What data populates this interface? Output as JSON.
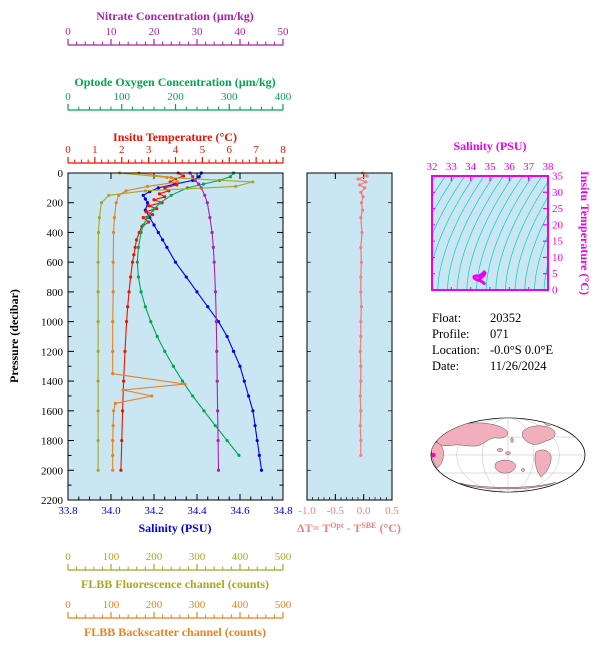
{
  "colors": {
    "nitrate": "#AA22AA",
    "oxygen": "#00A651",
    "temperature": "#EE1100",
    "salinity": "#0000EE",
    "fluorescence": "#A8A820",
    "backscatter": "#E8821E",
    "delta": "#F08080",
    "ts_frame": "#EE00EE",
    "contours": "#00CCCC",
    "plot_bg": "#CBE6F3",
    "map_land": "#F2AEBB",
    "axis_black": "#000000"
  },
  "axes": {
    "pressure": {
      "label": "Pressure (decibar)",
      "min": 0,
      "max": 2200,
      "tick_values": [
        0,
        200,
        400,
        600,
        800,
        1000,
        1200,
        1400,
        1600,
        1800,
        2000,
        2200
      ],
      "tick_labels": [
        "0",
        "200",
        "400",
        "600",
        "800",
        "1000",
        "1200",
        "1400",
        "1600",
        "1800",
        "2000",
        "2200"
      ]
    },
    "nitrate": {
      "title": "Nitrate Concentration (µm/kg)",
      "min": 0,
      "max": 50,
      "tick_values": [
        0,
        10,
        20,
        30,
        40,
        50
      ],
      "tick_labels": [
        "0",
        "10",
        "20",
        "30",
        "40",
        "50"
      ]
    },
    "oxygen": {
      "title": "Optode Oxygen Concentration (µm/kg)",
      "min": 0,
      "max": 400,
      "tick_values": [
        0,
        100,
        200,
        300,
        400
      ],
      "tick_labels": [
        "0",
        "100",
        "200",
        "300",
        "400"
      ]
    },
    "temperature": {
      "title": "Insitu Temperature (°C)",
      "min": 0,
      "max": 8,
      "tick_values": [
        0,
        1,
        2,
        3,
        4,
        5,
        6,
        7,
        8
      ],
      "tick_labels": [
        "0",
        "1",
        "2",
        "3",
        "4",
        "5",
        "6",
        "7",
        "8"
      ]
    },
    "salinity": {
      "title": "Salinity (PSU)",
      "min": 33.8,
      "max": 34.8,
      "tick_values": [
        33.8,
        34.0,
        34.2,
        34.4,
        34.6,
        34.8
      ],
      "tick_labels": [
        "33.8",
        "34.0",
        "34.2",
        "34.4",
        "34.6",
        "34.8"
      ]
    },
    "fluorescence": {
      "title": "FLBB Fluorescence channel (counts)",
      "min": 0,
      "max": 500,
      "tick_values": [
        0,
        100,
        200,
        300,
        400,
        500
      ],
      "tick_labels": [
        "0",
        "100",
        "200",
        "300",
        "400",
        "500"
      ]
    },
    "backscatter": {
      "title": "FLBB Backscatter channel (counts)",
      "min": 0,
      "max": 500,
      "tick_values": [
        0,
        100,
        200,
        300,
        400,
        500
      ],
      "tick_labels": [
        "0",
        "100",
        "200",
        "300",
        "400",
        "500"
      ]
    }
  },
  "delta_label": {
    "prefix": "ΔT= T",
    "sup1": "Opt",
    "mid": " - T",
    "sup2": "SBE",
    "suffix": " (°C)"
  },
  "info": {
    "rows": [
      {
        "label": "Float:",
        "value": "20352"
      },
      {
        "label": "Profile:",
        "value": "071"
      },
      {
        "label": "Location:",
        "value": "-0.0°S  0.0°E"
      },
      {
        "label": "Date:",
        "value": "11/26/2024"
      }
    ]
  },
  "chart_data": [
    {
      "id": "profiles",
      "type": "line",
      "ylabel": "Pressure (decibar)",
      "ylim": [
        0,
        2200
      ],
      "y_inverted": true,
      "series": [
        {
          "name": "Salinity (PSU)",
          "axis": "salinity",
          "xlim": [
            33.8,
            34.8
          ],
          "pressure": [
            0,
            25,
            50,
            75,
            100,
            125,
            150,
            175,
            200,
            250,
            300,
            350,
            400,
            450,
            500,
            600,
            700,
            800,
            900,
            1000,
            1100,
            1200,
            1300,
            1400,
            1500,
            1600,
            1700,
            1800,
            1900,
            2000
          ],
          "values": [
            34.42,
            34.41,
            34.38,
            34.3,
            34.22,
            34.18,
            34.15,
            34.16,
            34.17,
            34.16,
            34.18,
            34.2,
            34.22,
            34.24,
            34.26,
            34.3,
            34.35,
            34.4,
            34.45,
            34.5,
            34.54,
            34.57,
            34.6,
            34.62,
            34.64,
            34.66,
            34.67,
            34.68,
            34.69,
            34.7
          ]
        },
        {
          "name": "Insitu Temperature (°C)",
          "axis": "temperature",
          "xlim": [
            0,
            8
          ],
          "pressure": [
            0,
            20,
            40,
            60,
            80,
            100,
            120,
            140,
            160,
            180,
            200,
            220,
            240,
            260,
            280,
            300,
            330,
            360,
            400,
            450,
            500,
            550,
            600,
            700,
            800,
            900,
            1000,
            1200,
            1400,
            1600,
            1800,
            2000
          ],
          "values": [
            4.1,
            4.3,
            4.0,
            3.8,
            4.05,
            3.6,
            3.75,
            3.4,
            3.6,
            3.2,
            3.5,
            3.0,
            3.3,
            2.9,
            3.15,
            2.8,
            3.0,
            2.75,
            2.65,
            2.55,
            2.5,
            2.45,
            2.4,
            2.33,
            2.27,
            2.22,
            2.18,
            2.12,
            2.07,
            2.03,
            2.0,
            1.97
          ]
        },
        {
          "name": "Optode Oxygen Concentration (µm/kg)",
          "axis": "oxygen",
          "xlim": [
            0,
            400
          ],
          "pressure": [
            0,
            25,
            50,
            75,
            100,
            150,
            200,
            250,
            300,
            350,
            400,
            500,
            600,
            700,
            800,
            900,
            1000,
            1100,
            1200,
            1300,
            1400,
            1500,
            1600,
            1700,
            1800,
            1900
          ],
          "values": [
            308,
            302,
            282,
            252,
            222,
            192,
            172,
            158,
            148,
            140,
            136,
            131,
            129,
            131,
            136,
            144,
            154,
            166,
            180,
            196,
            213,
            232,
            253,
            274,
            296,
            318
          ]
        },
        {
          "name": "Nitrate Concentration (µm/kg)",
          "axis": "nitrate",
          "xlim": [
            0,
            50
          ],
          "pressure": [
            0,
            25,
            50,
            75,
            100,
            150,
            200,
            300,
            400,
            500,
            600,
            800,
            1000,
            1200,
            1400,
            1600,
            1800,
            2000
          ],
          "values": [
            28.4,
            29.0,
            29.6,
            30.4,
            31.0,
            31.8,
            32.4,
            33.0,
            33.5,
            33.8,
            34.0,
            34.3,
            34.5,
            34.6,
            34.7,
            34.8,
            34.9,
            35.0
          ]
        },
        {
          "name": "FLBB Fluorescence channel (counts)",
          "axis": "fluorescence",
          "xlim": [
            0,
            500
          ],
          "pressure": [
            0,
            30,
            60,
            90,
            120,
            150,
            200,
            300,
            400,
            600,
            800,
            1000,
            1200,
            1400,
            1600,
            1800,
            2000
          ],
          "values": [
            120,
            230,
            430,
            390,
            180,
            95,
            78,
            73,
            71,
            70,
            70,
            70,
            70,
            70,
            70,
            70,
            70
          ]
        },
        {
          "name": "FLBB Backscatter channel (counts)",
          "axis": "backscatter",
          "xlim": [
            0,
            500
          ],
          "pressure": [
            0,
            30,
            60,
            90,
            120,
            150,
            200,
            300,
            400,
            600,
            800,
            1000,
            1200,
            1350,
            1420,
            1460,
            1500,
            1550,
            1600,
            1700,
            1800,
            1900,
            2000
          ],
          "values": [
            165,
            240,
            255,
            185,
            135,
            118,
            112,
            108,
            106,
            105,
            105,
            104,
            104,
            104,
            272,
            128,
            195,
            110,
            106,
            105,
            104,
            104,
            104
          ]
        }
      ]
    },
    {
      "id": "delta_t",
      "type": "line",
      "xlabel": "ΔT = T^Opt - T^SBE (°C)",
      "xlim": [
        -1.0,
        0.5
      ],
      "tick_values": [
        -1.0,
        -0.5,
        0.0,
        0.5
      ],
      "tick_labels": [
        "-1.0",
        "-0.5",
        "0.0",
        "0.5"
      ],
      "ylim": [
        0,
        2200
      ],
      "pressure": [
        0,
        20,
        40,
        60,
        80,
        100,
        130,
        160,
        200,
        250,
        300,
        400,
        500,
        600,
        700,
        800,
        900,
        1000,
        1100,
        1200,
        1300,
        1400,
        1500,
        1600,
        1700,
        1800,
        1900
      ],
      "values": [
        -0.02,
        0.06,
        -0.1,
        0.04,
        -0.07,
        0.02,
        -0.05,
        -0.01,
        -0.04,
        -0.02,
        -0.05,
        -0.03,
        -0.05,
        -0.04,
        -0.05,
        -0.05,
        -0.04,
        -0.05,
        -0.05,
        -0.06,
        -0.05,
        -0.05,
        -0.06,
        -0.05,
        -0.06,
        -0.05,
        -0.05
      ]
    },
    {
      "id": "ts_diagram",
      "type": "scatter",
      "xlabel": "Salinity (PSU)",
      "ylabel": "Insitu Temperature (°C)",
      "xlim": [
        32,
        38
      ],
      "ylim": [
        0,
        35
      ],
      "x_ticks": [
        32,
        33,
        34,
        35,
        36,
        37,
        38
      ],
      "y_ticks": [
        0,
        5,
        10,
        15,
        20,
        25,
        30,
        35
      ],
      "contour_bases": [
        29.8,
        30.3,
        30.8,
        31.3,
        31.8,
        32.3,
        32.8,
        33.3,
        33.8,
        34.3,
        34.8,
        35.3,
        35.8,
        36.3,
        36.8,
        37.3,
        37.8
      ],
      "contour_spread": 2.4,
      "points": [
        [
          34.7,
          1.95
        ],
        [
          34.69,
          2.0
        ],
        [
          34.68,
          2.1
        ],
        [
          34.66,
          2.2
        ],
        [
          34.64,
          2.3
        ],
        [
          34.62,
          2.4
        ],
        [
          34.6,
          2.5
        ],
        [
          34.57,
          2.6
        ],
        [
          34.54,
          2.7
        ],
        [
          34.5,
          2.8
        ],
        [
          34.45,
          2.9
        ],
        [
          34.4,
          3.0
        ],
        [
          34.35,
          3.1
        ],
        [
          34.3,
          3.2
        ],
        [
          34.26,
          3.3
        ],
        [
          34.22,
          3.5
        ],
        [
          34.18,
          3.7
        ],
        [
          34.16,
          3.9
        ],
        [
          34.17,
          4.1
        ],
        [
          34.2,
          4.3
        ],
        [
          34.25,
          4.2
        ],
        [
          34.3,
          4.4
        ],
        [
          34.38,
          4.3
        ],
        [
          34.42,
          4.1
        ],
        [
          34.45,
          4.4
        ],
        [
          34.5,
          4.6
        ],
        [
          34.55,
          4.8
        ],
        [
          34.6,
          5.0
        ],
        [
          34.65,
          5.3
        ],
        [
          34.7,
          5.6
        ],
        [
          34.75,
          5.2
        ],
        [
          34.72,
          4.8
        ],
        [
          34.68,
          4.5
        ],
        [
          34.63,
          4.2
        ],
        [
          34.58,
          3.9
        ],
        [
          34.52,
          3.6
        ],
        [
          34.48,
          3.4
        ],
        [
          34.44,
          3.2
        ]
      ]
    }
  ]
}
